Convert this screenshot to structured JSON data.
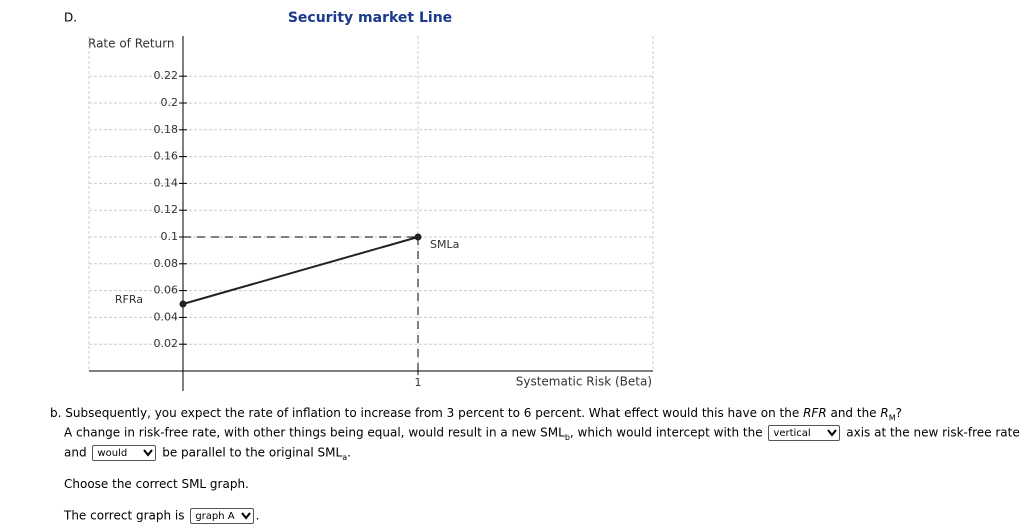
{
  "label": "D.",
  "chart_data": {
    "type": "line",
    "title": "Security market Line",
    "y_label": "Rate of Return",
    "x_label": "Systematic Risk (Beta)",
    "x": [
      0,
      1
    ],
    "series": [
      {
        "name": "SMLa",
        "color": "#222222",
        "values": [
          0.05,
          0.1
        ]
      }
    ],
    "annotations": [
      "RFRa",
      "SMLa"
    ],
    "xlim": [
      -0.4,
      2
    ],
    "xticks": [
      1
    ],
    "ylim": [
      0,
      0.25
    ],
    "yticks": [
      0.02,
      0.04,
      0.06,
      0.08,
      0.1,
      0.12,
      0.14,
      0.16,
      0.18,
      0.2,
      0.22
    ],
    "grid": true
  },
  "question": {
    "prompt": [
      "b. Subsequently, you expect the rate of inflation to increase from 3 percent to 6 percent. What effect would this have on the ",
      "RFR",
      " and the ",
      "R",
      "M",
      "?"
    ],
    "sentence": [
      "A change in risk-free rate, with other things being equal, would result in a new SML",
      "b",
      ", which would intercept with the ",
      "vertical",
      " axis at the new risk-free rate",
      "and",
      "would",
      "be parallel to the original SML",
      "a",
      "."
    ],
    "instruction": "Choose the correct SML graph.",
    "answer": [
      "The correct graph is",
      "graph A",
      "."
    ]
  }
}
